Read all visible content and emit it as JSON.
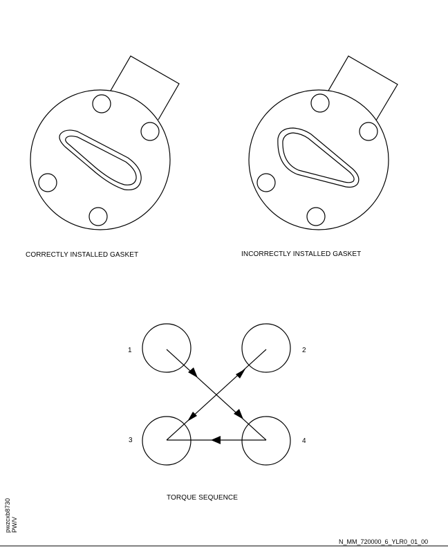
{
  "labels": {
    "correct": "CORRECTLY INSTALLED GASKET",
    "incorrect": "INCORRECTLY INSTALLED GASKET",
    "torque": "TORQUE SEQUENCE"
  },
  "bolt_numbers": [
    "1",
    "2",
    "3",
    "4"
  ],
  "side_text": [
    "pwzcxb8730",
    "PW/V"
  ],
  "footer_id": "N_MM_720000_6_YLR0_01_00",
  "colors": {
    "ink": "#000000",
    "background": "#ffffff"
  }
}
